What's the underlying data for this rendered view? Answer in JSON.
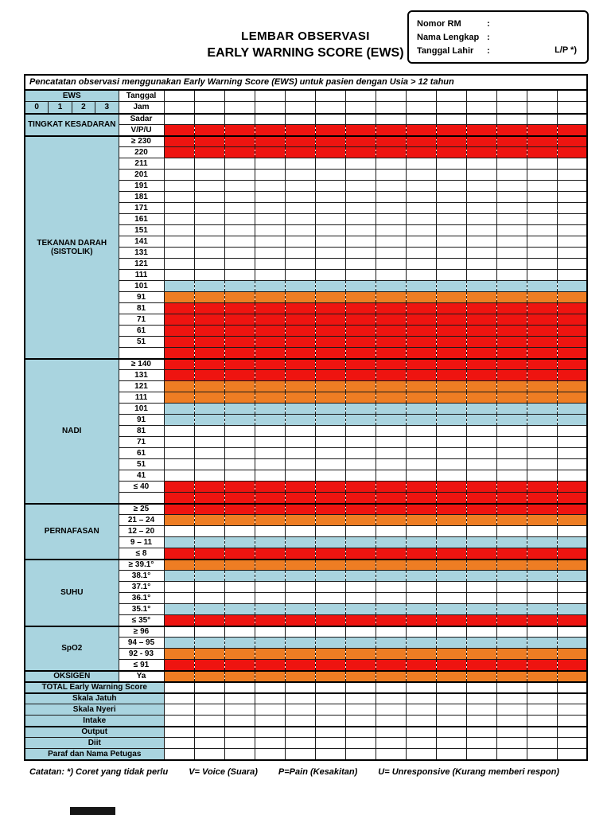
{
  "page": {
    "title_line1": "LEMBAR OBSERVASI",
    "title_line2": "EARLY WARNING SCORE (EWS)"
  },
  "patient_box": {
    "fields": [
      {
        "label": "Nomor RM",
        "colon": ":"
      },
      {
        "label": "Nama Lengkap",
        "colon": ":"
      },
      {
        "label": "Tanggal Lahir",
        "colon": ":"
      }
    ],
    "gender_label": "L/P *)"
  },
  "colors": {
    "red": "#EE1410",
    "orange": "#EE7D23",
    "blue": "#A9D4DF",
    "white": "#FFFFFF"
  },
  "table": {
    "caption": "Pencatatan observasi menggunakan Early Warning Score (EWS) untuk pasien dengan Usia > 12 tahun",
    "num_columns": 14,
    "ews_header": {
      "label": "EWS",
      "scores": [
        "0",
        "1",
        "2",
        "3"
      ]
    },
    "header_rows": [
      {
        "label": "Tanggal"
      },
      {
        "label": "Jam"
      }
    ],
    "sections": [
      {
        "name": "TINGKAT KESADARAN",
        "rows": [
          {
            "label": "Sadar",
            "color": "white"
          },
          {
            "label": "V/P/U",
            "color": "red"
          }
        ]
      },
      {
        "name": "TEKANAN DARAH (SISTOLIK)",
        "rows": [
          {
            "label": "≥ 230",
            "color": "red"
          },
          {
            "label": "220",
            "color": "red"
          },
          {
            "label": "211",
            "color": "white"
          },
          {
            "label": "201",
            "color": "white"
          },
          {
            "label": "191",
            "color": "white"
          },
          {
            "label": "181",
            "color": "white"
          },
          {
            "label": "171",
            "color": "white"
          },
          {
            "label": "161",
            "color": "white"
          },
          {
            "label": "151",
            "color": "white"
          },
          {
            "label": "141",
            "color": "white"
          },
          {
            "label": "131",
            "color": "white"
          },
          {
            "label": "121",
            "color": "white"
          },
          {
            "label": "111",
            "color": "white"
          },
          {
            "label": "101",
            "color": "blue"
          },
          {
            "label": "91",
            "color": "orange"
          },
          {
            "label": "81",
            "color": "red"
          },
          {
            "label": "71",
            "color": "red"
          },
          {
            "label": "61",
            "color": "red"
          },
          {
            "label": "51",
            "color": "red"
          },
          {
            "label": "",
            "color": "red"
          }
        ]
      },
      {
        "name": "NADI",
        "rows": [
          {
            "label": "≥ 140",
            "color": "red"
          },
          {
            "label": "131",
            "color": "red"
          },
          {
            "label": "121",
            "color": "orange"
          },
          {
            "label": "111",
            "color": "orange"
          },
          {
            "label": "101",
            "color": "blue"
          },
          {
            "label": "91",
            "color": "blue"
          },
          {
            "label": "81",
            "color": "white"
          },
          {
            "label": "71",
            "color": "white"
          },
          {
            "label": "61",
            "color": "white"
          },
          {
            "label": "51",
            "color": "white"
          },
          {
            "label": "41",
            "color": "white"
          },
          {
            "label": "≤ 40",
            "color": "red"
          },
          {
            "label": "",
            "color": "red"
          }
        ]
      },
      {
        "name": "PERNAFASAN",
        "rows": [
          {
            "label": "≥ 25",
            "color": "red"
          },
          {
            "label": "21 – 24",
            "color": "orange"
          },
          {
            "label": "12 – 20",
            "color": "white"
          },
          {
            "label": "9 – 11",
            "color": "blue"
          },
          {
            "label": "≤ 8",
            "color": "red"
          }
        ]
      },
      {
        "name": "SUHU",
        "rows": [
          {
            "label": "≥ 39.1°",
            "color": "orange"
          },
          {
            "label": "38.1°",
            "color": "blue"
          },
          {
            "label": "37.1°",
            "color": "white"
          },
          {
            "label": "36.1°",
            "color": "white"
          },
          {
            "label": "35.1°",
            "color": "blue"
          },
          {
            "label": "≤ 35°",
            "color": "red"
          }
        ]
      },
      {
        "name": "SpO2",
        "rows": [
          {
            "label": "≥ 96",
            "color": "white"
          },
          {
            "label": "94 – 95",
            "color": "blue"
          },
          {
            "label": "92 - 93",
            "color": "orange"
          },
          {
            "label": "≤ 91",
            "color": "red"
          }
        ]
      },
      {
        "name": "OKSIGEN",
        "rows": [
          {
            "label": "Ya",
            "color": "orange"
          }
        ]
      }
    ],
    "total_row": {
      "label": "TOTAL Early Warning Score"
    },
    "bottom_groups": [
      {
        "rows": [
          "Skala Jatuh",
          "Skala Nyeri",
          "Intake"
        ]
      },
      {
        "rows": [
          "Output",
          "Diit",
          "Paraf dan Nama Petugas"
        ]
      }
    ]
  },
  "note": {
    "parts": [
      "Catatan:  *) Coret yang tidak perlu",
      "V= Voice (Suara)",
      "P=Pain (Kesakitan)",
      "U= Unresponsive (Kurang memberi respon)"
    ]
  }
}
